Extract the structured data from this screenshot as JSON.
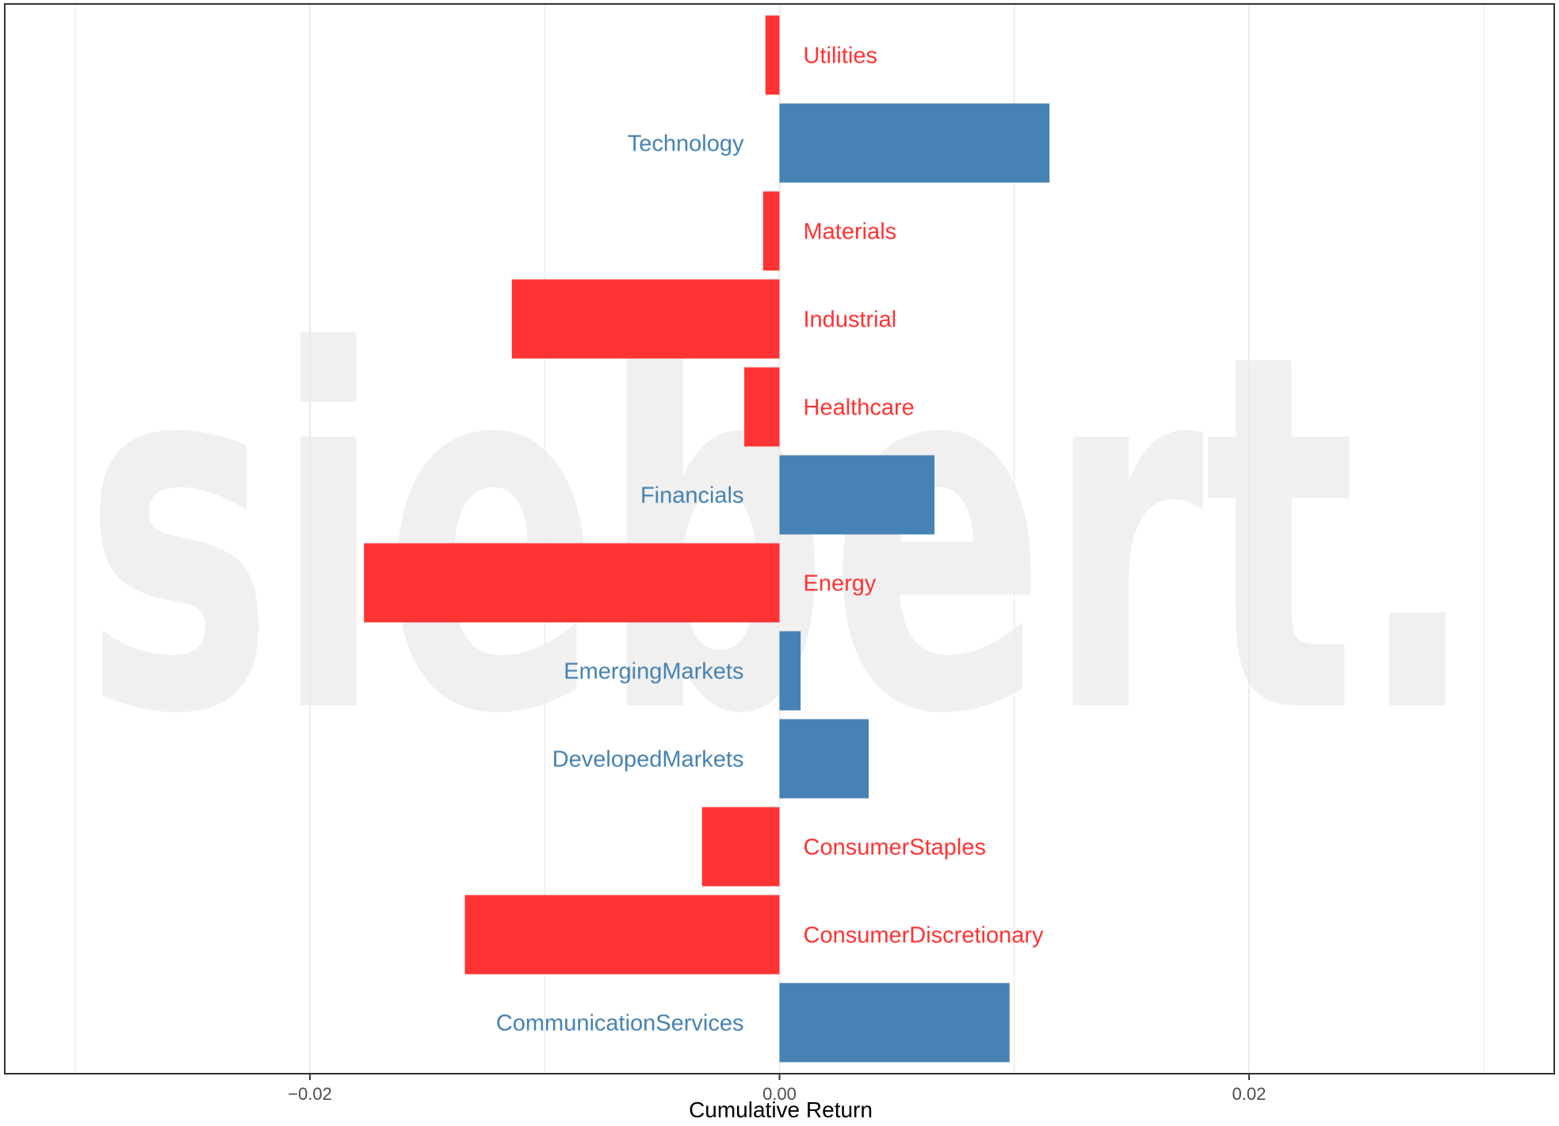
{
  "chart_data": {
    "type": "bar",
    "orientation": "horizontal",
    "categories": [
      "Utilities",
      "Technology",
      "Materials",
      "Industrial",
      "Healthcare",
      "Financials",
      "Energy",
      "EmergingMarkets",
      "DevelopedMarkets",
      "ConsumerStaples",
      "ConsumerDiscretionary",
      "CommunicationServices"
    ],
    "values": [
      -0.0006,
      0.0115,
      -0.0007,
      -0.0114,
      -0.0015,
      0.0066,
      -0.0177,
      0.0009,
      0.0038,
      -0.0033,
      -0.0134,
      0.0098
    ],
    "xlabel": "Cumulative Return",
    "xlim": [
      -0.033,
      0.033
    ],
    "x_ticks": [
      -0.02,
      0.0,
      0.02
    ],
    "x_tick_labels": [
      "−0.02",
      "0.00",
      "0.02"
    ],
    "grid": true,
    "legend": "none",
    "watermark": "siebert.",
    "colors": {
      "positive": "#4682b4",
      "negative": "#ff3333",
      "grid": "#ebebeb",
      "panel_border": "#333333"
    }
  }
}
